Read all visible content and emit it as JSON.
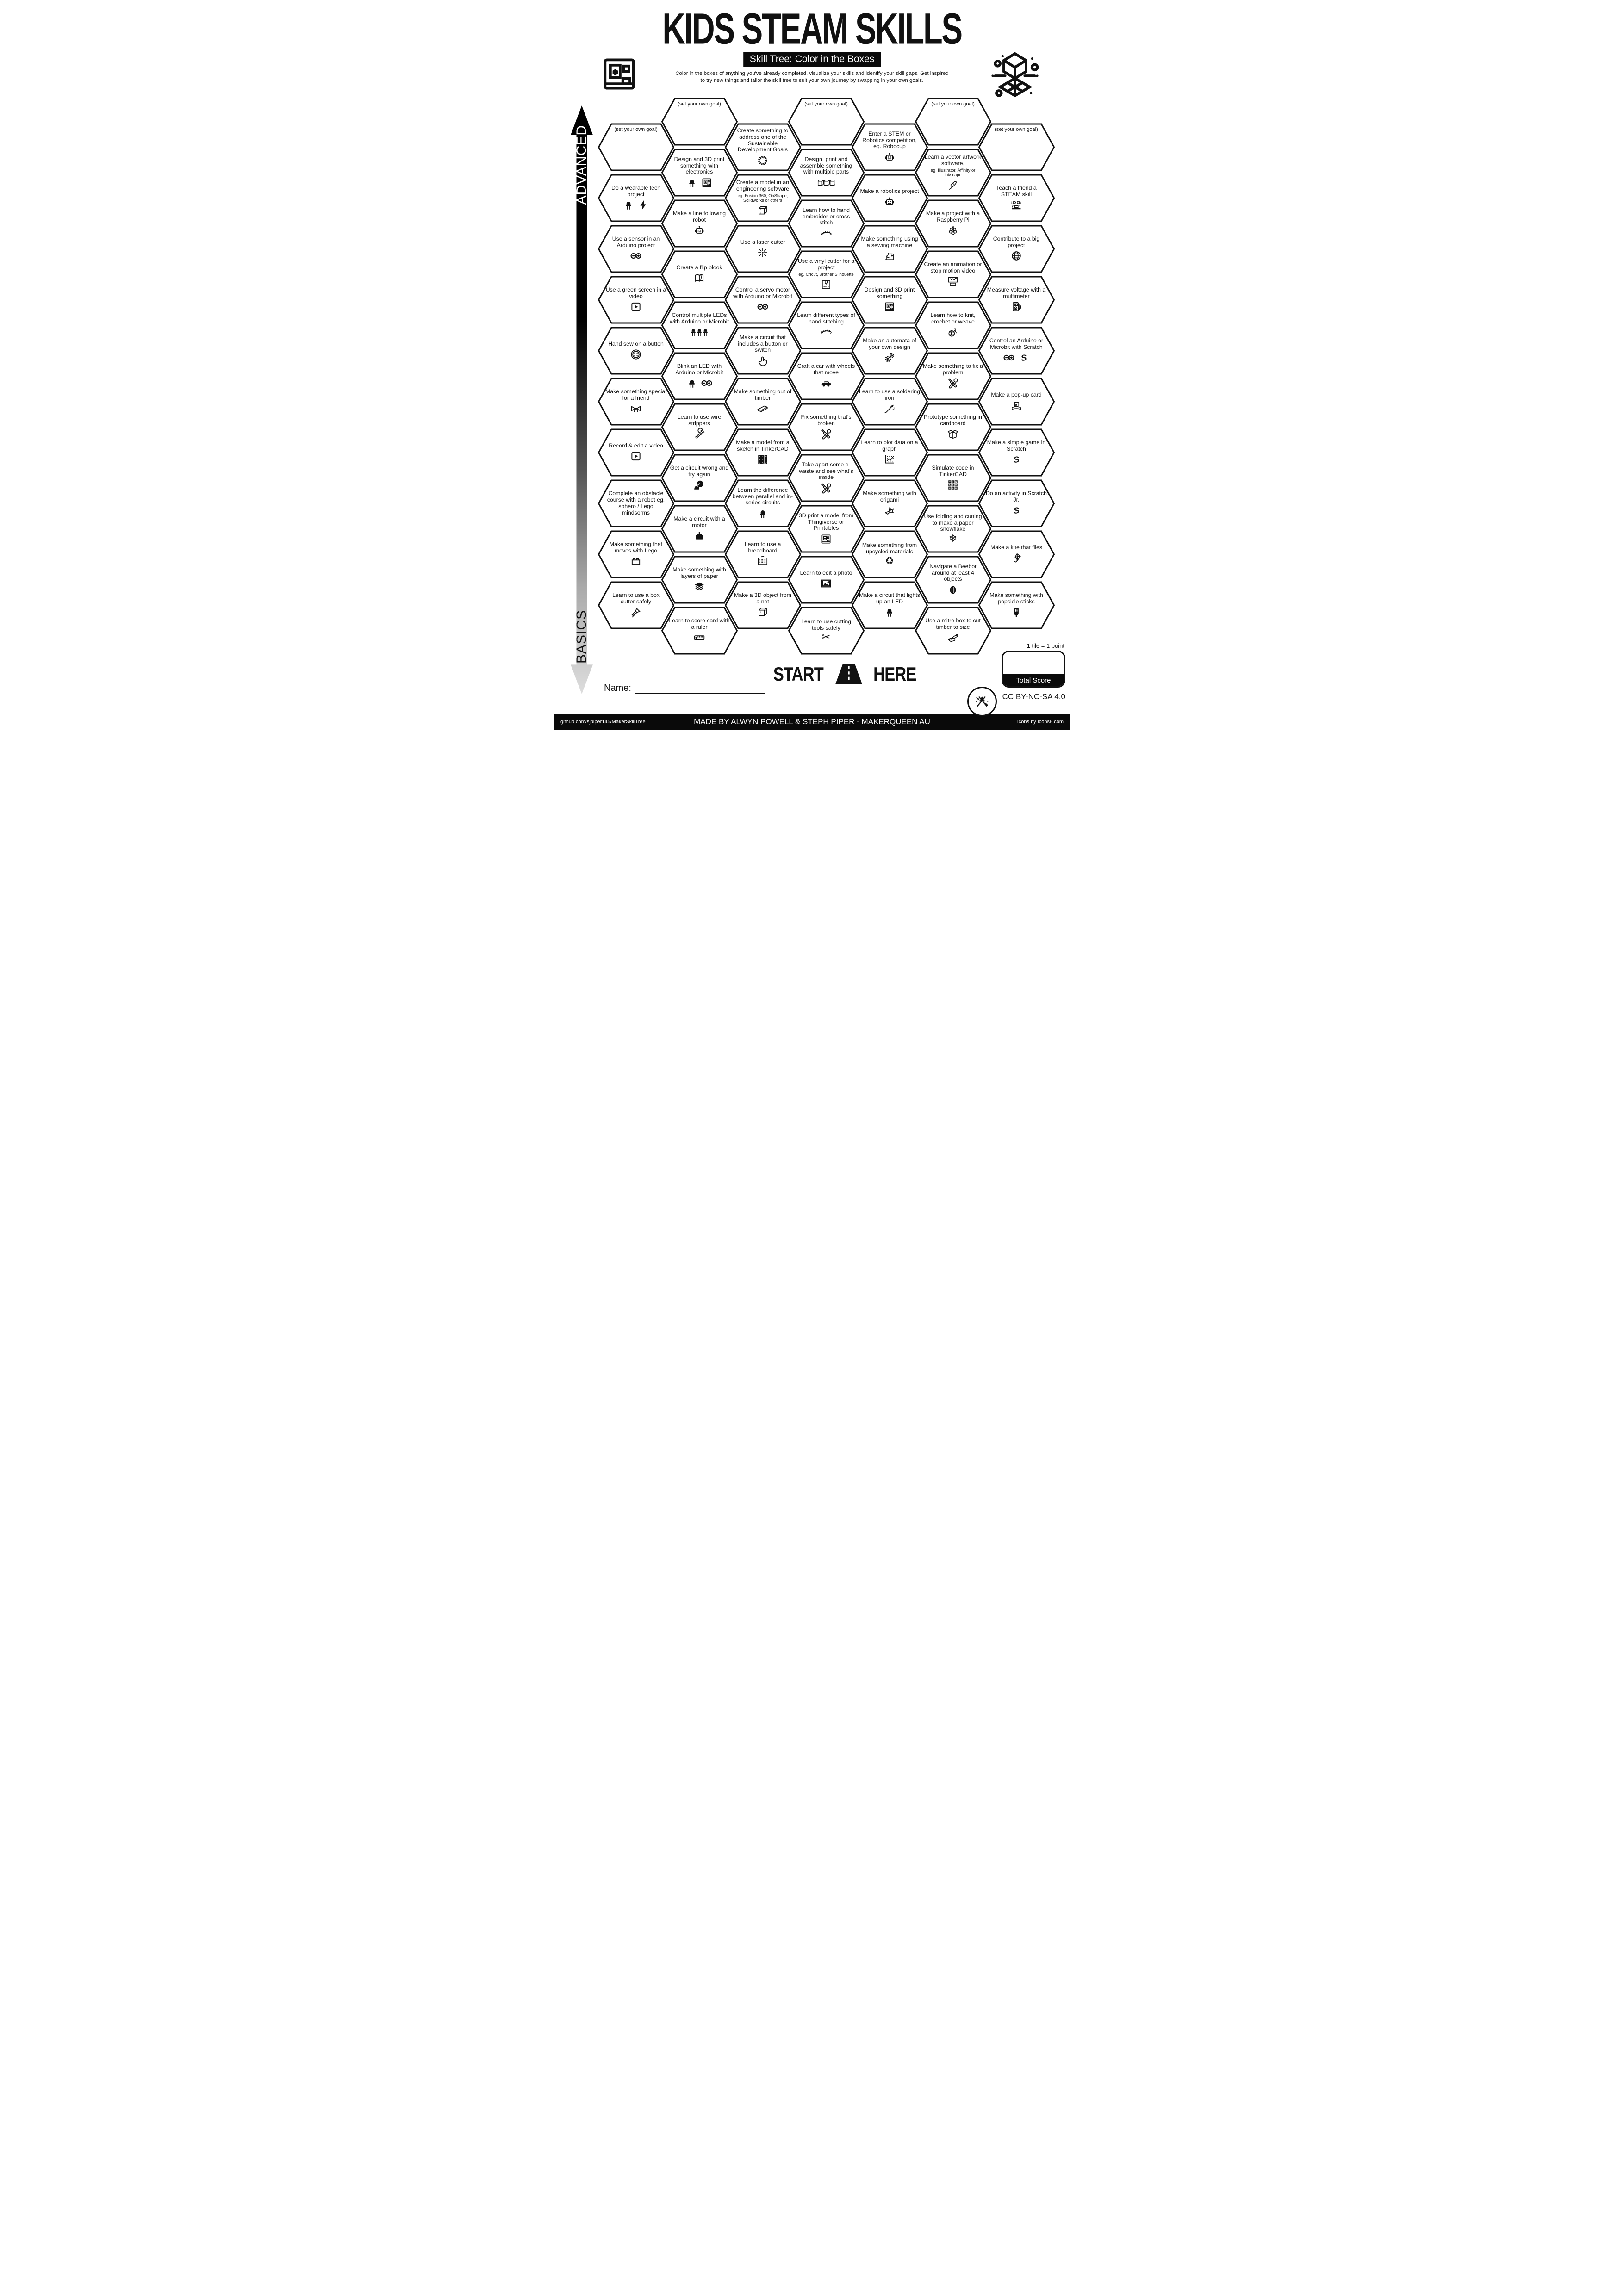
{
  "colors": {
    "ink": "#111111",
    "paper": "#ffffff"
  },
  "header": {
    "title": "KIDS STEAM SKILLS",
    "subtitle": "Skill Tree: Color in the Boxes",
    "description_line1": "Color in the boxes of anything you've already completed, visualize your skills and identify your skill gaps.  Get inspired",
    "description_line2": "to try new things and tailor the skill tree to suit your own journey by swapping in your own goals."
  },
  "axis": {
    "top": "ADVANCED",
    "bottom": "BASICS"
  },
  "start": {
    "left": "START",
    "right": "HERE"
  },
  "score": {
    "note": "1 tile = 1 point",
    "label": "Total Score"
  },
  "name_label": "Name:",
  "license": "CC BY-NC-SA 4.0",
  "footer": {
    "left": "github.com/sjpiper145/MakerSkillTree",
    "center": "MADE BY ALWYN POWELL & STEPH PIPER  -  MAKERQUEEN AU",
    "right": "Icons by Icons8.com"
  },
  "tiles": [
    {
      "col": 1,
      "row": 0,
      "goal": true,
      "label": "(set your own goal)",
      "icons": []
    },
    {
      "col": 1,
      "row": 1,
      "label": "Do a wearable tech project",
      "icons": [
        "led-icon",
        "lightning-icon"
      ]
    },
    {
      "col": 1,
      "row": 2,
      "label": "Use a sensor in an Arduino project",
      "icons": [
        "arduino-icon"
      ]
    },
    {
      "col": 1,
      "row": 3,
      "label": "Use a green screen in a video",
      "icons": [
        "video-icon"
      ]
    },
    {
      "col": 1,
      "row": 4,
      "label": "Hand sew on a button",
      "icons": [
        "button-icon"
      ]
    },
    {
      "col": 1,
      "row": 5,
      "label": "Make something special for a friend",
      "icons": [
        "bow-icon"
      ]
    },
    {
      "col": 1,
      "row": 6,
      "label": "Record & edit a video",
      "icons": [
        "video-icon"
      ]
    },
    {
      "col": 1,
      "row": 7,
      "label": "Complete an obstacle course with a robot eg. sphero / Lego mindsorms",
      "icons": []
    },
    {
      "col": 1,
      "row": 8,
      "label": "Make something that moves with Lego",
      "icons": [
        "lego-icon"
      ]
    },
    {
      "col": 1,
      "row": 9,
      "label": "Learn to use a box cutter safely",
      "icons": [
        "boxcutter-icon"
      ]
    },
    {
      "col": 2,
      "row": 0,
      "goal": true,
      "label": "(set your own goal)",
      "icons": []
    },
    {
      "col": 2,
      "row": 1,
      "label": "Design and 3D print something with electronics",
      "icons": [
        "led-icon",
        "printer3d-icon"
      ]
    },
    {
      "col": 2,
      "row": 2,
      "label": "Make a line following robot",
      "icons": [
        "robot-icon"
      ]
    },
    {
      "col": 2,
      "row": 3,
      "label": "Create a flip blook",
      "icons": [
        "book-icon"
      ]
    },
    {
      "col": 2,
      "row": 4,
      "label": "Control multiple LEDs with Arduino or Microbit",
      "icons": [
        "leds3-icon"
      ]
    },
    {
      "col": 2,
      "row": 5,
      "label": "Blink an LED with Arduino or Microbit",
      "icons": [
        "led-icon",
        "arduino-icon"
      ]
    },
    {
      "col": 2,
      "row": 6,
      "label": "Learn to use wire strippers",
      "icons": [
        "wirestripper-icon"
      ]
    },
    {
      "col": 2,
      "row": 7,
      "label": "Get a circuit wrong and try again",
      "icons": [
        "facepalm-icon"
      ]
    },
    {
      "col": 2,
      "row": 8,
      "label": "Make a circuit with a motor",
      "icons": [
        "motor-icon"
      ]
    },
    {
      "col": 2,
      "row": 9,
      "label": "Make something with layers of paper",
      "icons": [
        "layers-icon"
      ]
    },
    {
      "col": 2,
      "row": 10,
      "label": "Learn to score card with a ruler",
      "icons": [
        "ruler-icon"
      ]
    },
    {
      "col": 3,
      "row": 0,
      "label": "Create something to address one of the Sustainable Development Goals",
      "icons": [
        "sdg-icon"
      ]
    },
    {
      "col": 3,
      "row": 1,
      "label": "Create a model in an engineering software",
      "note": "eg. Fusion 360, OnShape, Solidworks or others",
      "icons": [
        "cube-icon"
      ]
    },
    {
      "col": 3,
      "row": 2,
      "label": "Use a laser cutter",
      "icons": [
        "laser-icon"
      ]
    },
    {
      "col": 3,
      "row": 3,
      "label": "Control a servo motor with Arduino or Microbit",
      "icons": [
        "arduino-icon"
      ]
    },
    {
      "col": 3,
      "row": 4,
      "label": "Make a circuit that includes a button or switch",
      "icons": [
        "tap-icon"
      ]
    },
    {
      "col": 3,
      "row": 5,
      "label": "Make something out of timber",
      "icons": [
        "timber-icon"
      ]
    },
    {
      "col": 3,
      "row": 6,
      "label": "Make a model from a sketch in TinkerCAD",
      "icons": [
        "tinkercad-icon"
      ]
    },
    {
      "col": 3,
      "row": 7,
      "label": "Learn the difference between parallel and in-series circuits",
      "icons": [
        "led-icon"
      ]
    },
    {
      "col": 3,
      "row": 8,
      "label": "Learn to use a breadboard",
      "icons": [
        "breadboard-icon"
      ]
    },
    {
      "col": 3,
      "row": 9,
      "label": "Make a 3D object from a net",
      "icons": [
        "cube-icon"
      ]
    },
    {
      "col": 4,
      "row": 0,
      "goal": true,
      "label": "(set your own goal)",
      "icons": []
    },
    {
      "col": 4,
      "row": 1,
      "label": "Design, print and assemble something with multiple parts",
      "icons": [
        "cubes3-icon"
      ]
    },
    {
      "col": 4,
      "row": 2,
      "label": "Learn how to hand embroider or cross stitch",
      "icons": [
        "stitch-icon"
      ]
    },
    {
      "col": 4,
      "row": 3,
      "label": "Use a vinyl cutter for a project",
      "note": "eg. Cricut, Brother Silhouette",
      "icons": [
        "vinyl-icon"
      ]
    },
    {
      "col": 4,
      "row": 4,
      "label": "Learn different types of hand stitching",
      "icons": [
        "stitch-icon"
      ]
    },
    {
      "col": 4,
      "row": 5,
      "label": "Craft a car with wheels that move",
      "icons": [
        "car-icon"
      ]
    },
    {
      "col": 4,
      "row": 6,
      "label": "Fix something that's broken",
      "icons": [
        "tools-icon"
      ]
    },
    {
      "col": 4,
      "row": 7,
      "label": "Take apart some e-waste and see what's inside",
      "icons": [
        "tools-icon"
      ]
    },
    {
      "col": 4,
      "row": 8,
      "label": "3D print a model from Thingiverse or Printables",
      "icons": [
        "printer3d-icon"
      ]
    },
    {
      "col": 4,
      "row": 9,
      "label": "Learn to edit a photo",
      "icons": [
        "photo-icon"
      ]
    },
    {
      "col": 4,
      "row": 10,
      "label": "Learn to use cutting tools safely",
      "icons": [
        "scissors-icon"
      ]
    },
    {
      "col": 5,
      "row": 0,
      "label": "Enter a STEM or Robotics competition, eg. Robocup",
      "icons": [
        "robot-icon"
      ]
    },
    {
      "col": 5,
      "row": 1,
      "label": "Make a robotics project",
      "icons": [
        "robot-icon"
      ]
    },
    {
      "col": 5,
      "row": 2,
      "label": "Make something using a sewing machine",
      "icons": [
        "sewing-icon"
      ]
    },
    {
      "col": 5,
      "row": 3,
      "label": "Design and 3D print something",
      "icons": [
        "printer3d-icon"
      ]
    },
    {
      "col": 5,
      "row": 4,
      "label": "Make an automata of your own design",
      "icons": [
        "gears-icon"
      ]
    },
    {
      "col": 5,
      "row": 5,
      "label": "Learn to use a soldering iron",
      "icons": [
        "soldering-icon"
      ]
    },
    {
      "col": 5,
      "row": 6,
      "label": "Learn to plot data on a graph",
      "icons": [
        "graph-icon"
      ]
    },
    {
      "col": 5,
      "row": 7,
      "label": "Make something with origami",
      "icons": [
        "origami-icon"
      ]
    },
    {
      "col": 5,
      "row": 8,
      "label": "Make something from upcycled materials",
      "icons": [
        "recycle-icon"
      ]
    },
    {
      "col": 5,
      "row": 9,
      "label": "Make a circuit that lights up an LED",
      "icons": [
        "led-icon"
      ]
    },
    {
      "col": 6,
      "row": 0,
      "goal": true,
      "label": "(set your own goal)",
      "icons": []
    },
    {
      "col": 6,
      "row": 1,
      "label": "Learn a vector artwork software,",
      "note": "eg. Illustrator, Affinity or Inkscape",
      "icons": [
        "pentool-icon"
      ]
    },
    {
      "col": 6,
      "row": 2,
      "label": "Make a project with a Raspberry Pi",
      "icons": [
        "raspberry-icon"
      ]
    },
    {
      "col": 6,
      "row": 3,
      "label": "Create an animation or stop motion video",
      "icons": [
        "animation-icon"
      ]
    },
    {
      "col": 6,
      "row": 4,
      "label": "Learn how to knit, crochet or weave",
      "icons": [
        "yarn-icon"
      ]
    },
    {
      "col": 6,
      "row": 5,
      "label": "Make something to fix a problem",
      "icons": [
        "tools-icon"
      ]
    },
    {
      "col": 6,
      "row": 6,
      "label": "Prototype something in cardboard",
      "icons": [
        "box-icon"
      ]
    },
    {
      "col": 6,
      "row": 7,
      "label": "Simulate code in TinkerCAD",
      "icons": [
        "tinkercad-icon"
      ]
    },
    {
      "col": 6,
      "row": 8,
      "label": "Use folding and cutting to make a paper snowflake",
      "icons": [
        "snowflake-icon"
      ]
    },
    {
      "col": 6,
      "row": 9,
      "label": "Navigate a Beebot around at least 4 objects",
      "icons": [
        "beebot-icon"
      ]
    },
    {
      "col": 6,
      "row": 10,
      "label": "Use a mitre box to cut timber to size",
      "icons": [
        "mitre-icon"
      ]
    },
    {
      "col": 7,
      "row": 0,
      "goal": true,
      "label": "(set your own goal)",
      "icons": []
    },
    {
      "col": 7,
      "row": 1,
      "label": "Teach a friend a STEAM skill",
      "icons": [
        "people-icon"
      ]
    },
    {
      "col": 7,
      "row": 2,
      "label": "Contribute to a big project",
      "icons": [
        "globe-icon"
      ]
    },
    {
      "col": 7,
      "row": 3,
      "label": "Measure voltage with a multimeter",
      "icons": [
        "multimeter-icon"
      ]
    },
    {
      "col": 7,
      "row": 4,
      "label": "Control an Arduino or Microbit with Scratch",
      "icons": [
        "arduino-icon",
        "scratch-icon"
      ]
    },
    {
      "col": 7,
      "row": 5,
      "label": "Make a pop-up card",
      "icons": [
        "popup-icon"
      ]
    },
    {
      "col": 7,
      "row": 6,
      "label": "Make a simple game in Scratch",
      "icons": [
        "scratch-icon"
      ]
    },
    {
      "col": 7,
      "row": 7,
      "label": "Do an activity in Scratch Jr.",
      "icons": [
        "scratch-icon"
      ]
    },
    {
      "col": 7,
      "row": 8,
      "label": "Make a kite that flies",
      "icons": [
        "kite-icon"
      ]
    },
    {
      "col": 7,
      "row": 9,
      "label": "Make something with popsicle sticks",
      "icons": [
        "popsicle-icon"
      ]
    }
  ]
}
